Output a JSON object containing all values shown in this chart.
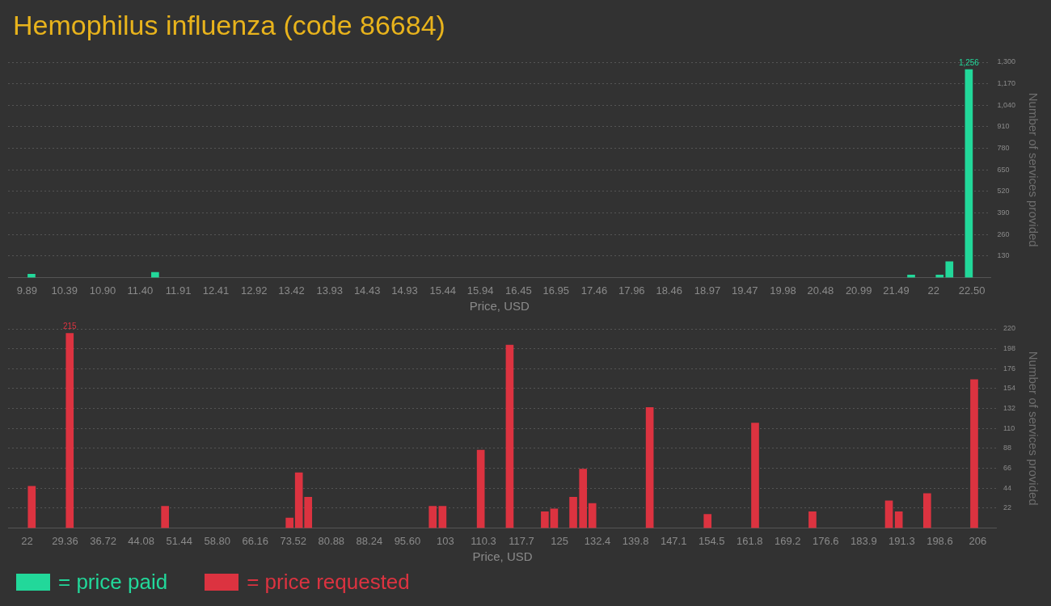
{
  "chart_data": [
    {
      "type": "bar",
      "title": "Hemophilus influenza (code 86684)",
      "xlabel": "Price, USD",
      "ylabel": "Number of services provided",
      "x": [
        9.95,
        11.6,
        21.69,
        22.07,
        22.2,
        22.46
      ],
      "series": [
        {
          "name": "= price paid",
          "color": "#22d89a",
          "values": [
            20,
            31,
            15,
            15,
            96,
            1256
          ],
          "value_labels": [
            null,
            null,
            null,
            null,
            null,
            "1,256"
          ]
        }
      ],
      "xlim": [
        9.89,
        22.5
      ],
      "xticks": [
        9.89,
        10.39,
        {
          "value": 10.9,
          "label": "10.90"
        },
        {
          "value": 11.4,
          "label": "11.40"
        },
        11.91,
        12.41,
        12.92,
        13.42,
        13.93,
        14.43,
        14.93,
        15.44,
        15.94,
        16.45,
        16.95,
        17.46,
        17.96,
        18.46,
        18.97,
        19.47,
        19.98,
        20.48,
        20.99,
        21.49,
        {
          "value": 21.99,
          "label": "22"
        },
        {
          "value": 22.5,
          "label": "22.50"
        }
      ],
      "ylim": [
        0,
        1300
      ],
      "yticks": [
        130,
        260,
        390,
        520,
        650,
        780,
        910,
        {
          "value": 1040,
          "label": "1,040"
        },
        {
          "value": 1170,
          "label": "1,170"
        },
        {
          "value": 1300,
          "label": "1,300"
        }
      ],
      "grid": "y",
      "legend": "bottom left"
    },
    {
      "type": "bar",
      "xlabel": "Price, USD",
      "ylabel": "Number of services provided",
      "x": [
        22.9,
        30.25,
        48.7,
        72.8,
        74.6,
        76.4,
        100.5,
        102.4,
        109.8,
        115.4,
        122.2,
        124.0,
        127.7,
        129.6,
        131.4,
        142.5,
        153.7,
        162.9,
        174.0,
        188.8,
        190.7,
        196.2,
        205.3
      ],
      "series": [
        {
          "name": "= price requested",
          "color": "#dc3340",
          "values": [
            46,
            215,
            24,
            11,
            61,
            34,
            24,
            24,
            86,
            202,
            18,
            21,
            34,
            65,
            27,
            133,
            15,
            116,
            18,
            30,
            18,
            38,
            164
          ],
          "value_labels": [
            null,
            "215",
            null,
            null,
            null,
            null,
            null,
            null,
            null,
            null,
            null,
            null,
            null,
            null,
            null,
            null,
            null,
            null,
            null,
            null,
            null,
            null,
            null
          ]
        }
      ],
      "xlim": [
        22,
        206
      ],
      "xticks": [
        22,
        29.36,
        36.72,
        44.08,
        51.44,
        {
          "value": 58.8,
          "label": "58.80"
        },
        66.16,
        73.52,
        80.88,
        88.24,
        {
          "value": 95.6,
          "label": "95.60"
        },
        {
          "value": 102.96,
          "label": "103"
        },
        {
          "value": 110.32,
          "label": "110.3"
        },
        {
          "value": 117.68,
          "label": "117.7"
        },
        {
          "value": 125.04,
          "label": "125"
        },
        132.4,
        {
          "value": 139.76,
          "label": "139.8"
        },
        {
          "value": 147.12,
          "label": "147.1"
        },
        {
          "value": 154.48,
          "label": "154.5"
        },
        {
          "value": 161.84,
          "label": "161.8"
        },
        {
          "value": 169.2,
          "label": "169.2"
        },
        {
          "value": 176.56,
          "label": "176.6"
        },
        {
          "value": 183.92,
          "label": "183.9"
        },
        {
          "value": 191.28,
          "label": "191.3"
        },
        {
          "value": 198.64,
          "label": "198.6"
        },
        206
      ],
      "ylim": [
        0,
        220
      ],
      "yticks": [
        22,
        44,
        66,
        88,
        110,
        132,
        154,
        176,
        198,
        220
      ],
      "grid": "y",
      "legend": "bottom left"
    }
  ]
}
